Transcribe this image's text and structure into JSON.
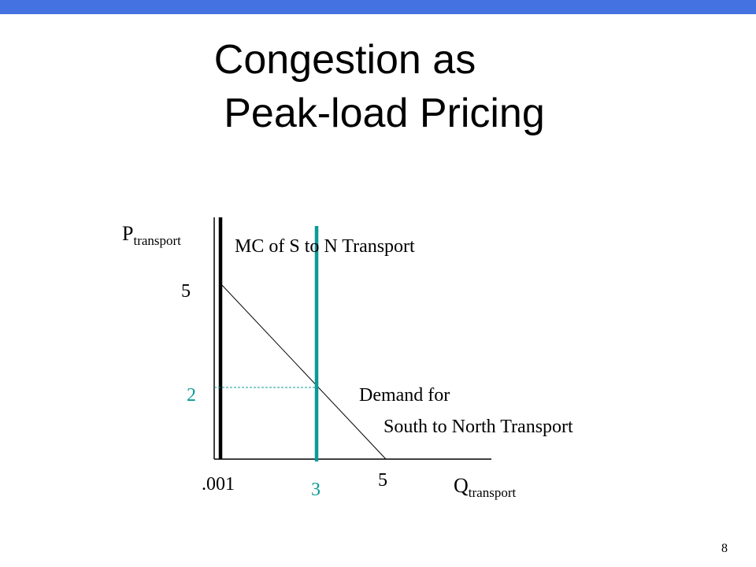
{
  "slide": {
    "title_line1": "Congestion as",
    "title_line2": "Peak-load Pricing",
    "page_number": "8"
  },
  "colors": {
    "top_bar": "#4472e0",
    "black": "#000000",
    "teal": "#0c9a96"
  },
  "diagram": {
    "y_axis_label": "P",
    "y_axis_subscript": "transport",
    "x_axis_label": "Q",
    "x_axis_subscript": "transport",
    "mc_label": "MC of S to N Transport",
    "demand_label_line1": "Demand for",
    "demand_label_line2": "South to North Transport",
    "price_intercept_label": "5",
    "quantity_intercept_label": "5",
    "congested_price_label": "2",
    "congested_quantity_label": "3",
    "mc_quantity_label": ".001"
  }
}
